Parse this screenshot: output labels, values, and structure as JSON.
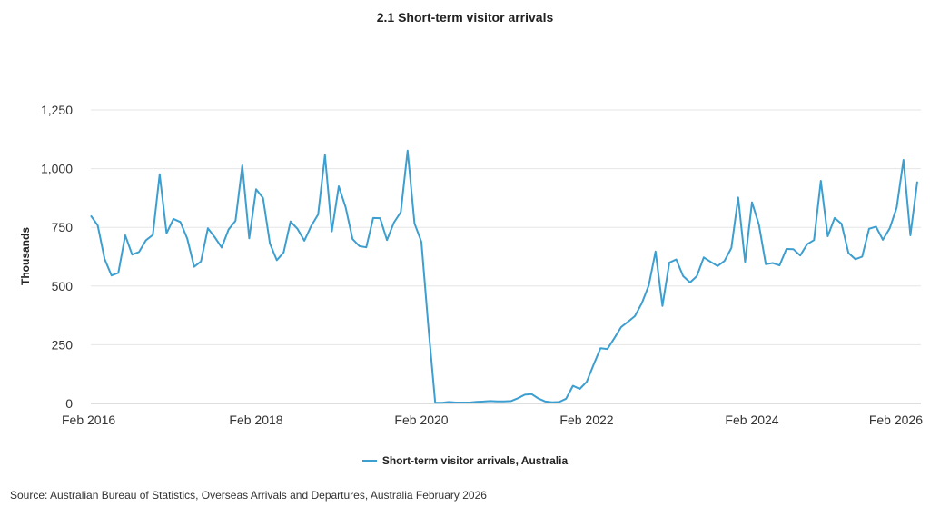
{
  "title": "2.1 Short-term visitor arrivals",
  "source": "Source: Australian Bureau of Statistics, Overseas Arrivals and Departures, Australia February 2026",
  "colors": {
    "series": "#3d9ed0",
    "grid": "#e6e6e6",
    "axis": "#bdbdbd"
  },
  "chart_data": {
    "type": "line",
    "title": "2.1 Short-term visitor arrivals",
    "xlabel": "",
    "ylabel": "Thousands",
    "ylim": [
      0,
      1250
    ],
    "y_ticks": [
      0,
      250,
      500,
      750,
      1000,
      1250
    ],
    "y_tick_labels": [
      "0",
      "250",
      "500",
      "750",
      "1,000",
      "1,250"
    ],
    "x_start": "Feb 2016",
    "x_end": "Feb 2026",
    "x_tick_labels": [
      "Feb 2016",
      "Feb 2018",
      "Feb 2020",
      "Feb 2022",
      "Feb 2024",
      "Feb 2026"
    ],
    "grid": "horizontal",
    "legend_position": "bottom-center",
    "series": [
      {
        "name": "Short-term visitor arrivals, Australia",
        "values": [
          800,
          758,
          615,
          545,
          556,
          716,
          634,
          645,
          695,
          718,
          976,
          725,
          786,
          773,
          702,
          582,
          605,
          746,
          708,
          664,
          741,
          778,
          1014,
          703,
          912,
          875,
          681,
          610,
          643,
          775,
          744,
          693,
          756,
          805,
          1058,
          733,
          925,
          835,
          700,
          670,
          665,
          790,
          789,
          696,
          770,
          815,
          1077,
          767,
          688,
          330,
          3,
          3,
          6,
          4,
          4,
          4,
          7,
          8,
          10,
          9,
          9,
          10,
          22,
          37,
          40,
          21,
          8,
          5,
          6,
          20,
          75,
          62,
          92,
          165,
          235,
          232,
          277,
          325,
          348,
          372,
          427,
          502,
          647,
          415,
          600,
          613,
          542,
          515,
          542,
          622,
          603,
          585,
          607,
          662,
          877,
          603,
          857,
          762,
          593,
          598,
          588,
          658,
          657,
          630,
          678,
          696,
          948,
          712,
          790,
          765,
          641,
          614,
          625,
          744,
          753,
          697,
          746,
          834,
          1037,
          716,
          945
        ]
      }
    ]
  }
}
